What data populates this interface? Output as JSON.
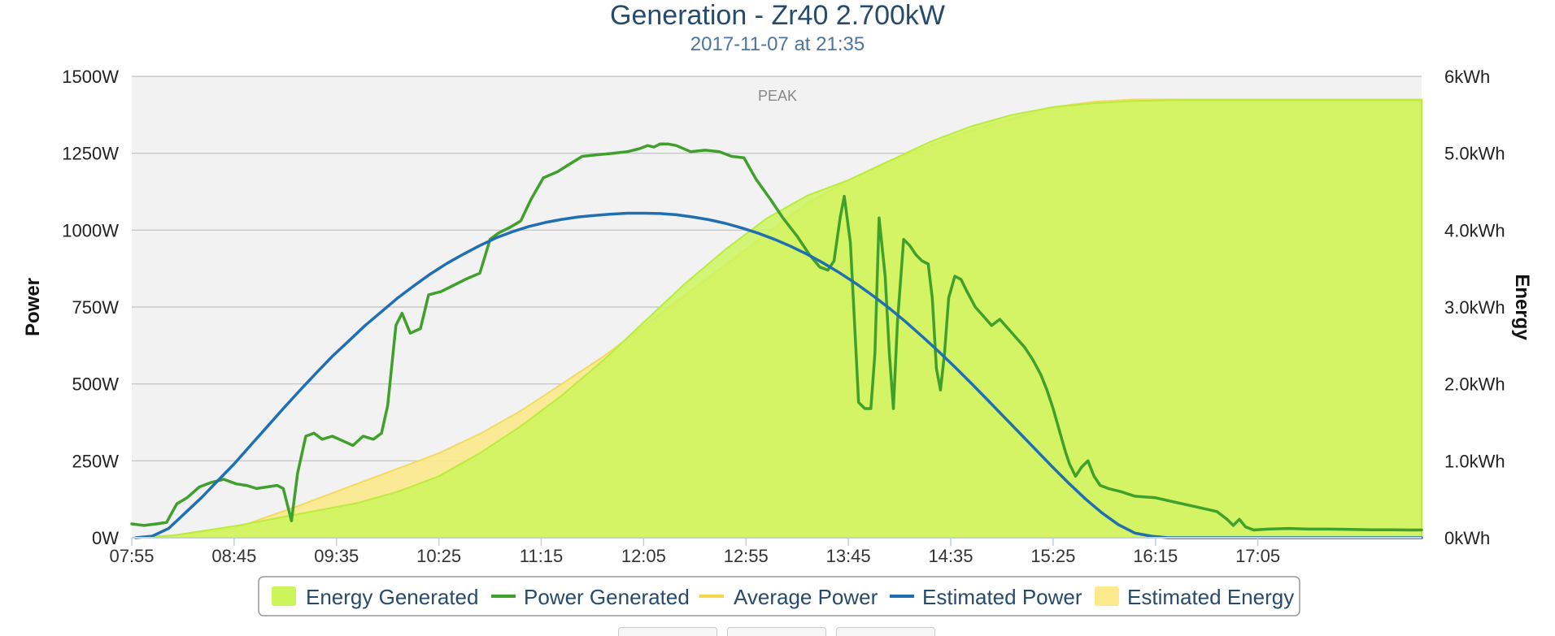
{
  "chart_data": {
    "type": "area",
    "title": "Generation - Zr40 2.700kW",
    "subtitle": "2017-11-07 at 21:35",
    "peak_label": "PEAK",
    "y_left": {
      "label": "Power",
      "min": 0,
      "max": 1500,
      "ticks": [
        {
          "v": 0,
          "label": "0W"
        },
        {
          "v": 250,
          "label": "250W"
        },
        {
          "v": 500,
          "label": "500W"
        },
        {
          "v": 750,
          "label": "750W"
        },
        {
          "v": 1000,
          "label": "1000W"
        },
        {
          "v": 1250,
          "label": "1250W"
        },
        {
          "v": 1500,
          "label": "1500W"
        }
      ]
    },
    "y_right": {
      "label": "Energy",
      "min": 0,
      "max": 6,
      "ticks": [
        {
          "v": 0,
          "label": "0kWh"
        },
        {
          "v": 1,
          "label": "1.0kWh"
        },
        {
          "v": 2,
          "label": "2.0kWh"
        },
        {
          "v": 3,
          "label": "3.0kWh"
        },
        {
          "v": 4,
          "label": "4.0kWh"
        },
        {
          "v": 5,
          "label": "5.0kWh"
        },
        {
          "v": 6,
          "label": "6kWh"
        }
      ]
    },
    "x": {
      "min_minutes": 475,
      "max_minutes": 1105,
      "ticks": [
        {
          "v": 475,
          "label": "07:55"
        },
        {
          "v": 525,
          "label": "08:45"
        },
        {
          "v": 575,
          "label": "09:35"
        },
        {
          "v": 625,
          "label": "10:25"
        },
        {
          "v": 675,
          "label": "11:15"
        },
        {
          "v": 725,
          "label": "12:05"
        },
        {
          "v": 775,
          "label": "12:55"
        },
        {
          "v": 825,
          "label": "13:45"
        },
        {
          "v": 875,
          "label": "14:35"
        },
        {
          "v": 925,
          "label": "15:25"
        },
        {
          "v": 975,
          "label": "16:15"
        },
        {
          "v": 1025,
          "label": "17:05"
        }
      ]
    },
    "series": [
      {
        "name": "Energy Generated",
        "axis": "right",
        "kind": "area",
        "color": "#ccf55a",
        "points": [
          [
            475,
            0
          ],
          [
            495,
            0.03
          ],
          [
            525,
            0.15
          ],
          [
            555,
            0.3
          ],
          [
            585,
            0.45
          ],
          [
            605,
            0.6
          ],
          [
            625,
            0.8
          ],
          [
            645,
            1.1
          ],
          [
            665,
            1.45
          ],
          [
            685,
            1.85
          ],
          [
            705,
            2.3
          ],
          [
            725,
            2.8
          ],
          [
            745,
            3.3
          ],
          [
            765,
            3.75
          ],
          [
            785,
            4.15
          ],
          [
            805,
            4.45
          ],
          [
            825,
            4.65
          ],
          [
            845,
            4.9
          ],
          [
            865,
            5.15
          ],
          [
            885,
            5.35
          ],
          [
            905,
            5.5
          ],
          [
            925,
            5.6
          ],
          [
            945,
            5.65
          ],
          [
            965,
            5.68
          ],
          [
            985,
            5.69
          ],
          [
            1005,
            5.69
          ],
          [
            1105,
            5.69
          ]
        ]
      },
      {
        "name": "Power Generated",
        "axis": "left",
        "kind": "line",
        "color": "#3fa02c",
        "points": [
          [
            475,
            45
          ],
          [
            481,
            40
          ],
          [
            487,
            45
          ],
          [
            492,
            50
          ],
          [
            497,
            110
          ],
          [
            502,
            130
          ],
          [
            508,
            165
          ],
          [
            514,
            180
          ],
          [
            520,
            190
          ],
          [
            526,
            175
          ],
          [
            531,
            170
          ],
          [
            536,
            160
          ],
          [
            541,
            165
          ],
          [
            546,
            170
          ],
          [
            549,
            160
          ],
          [
            553,
            55
          ],
          [
            556,
            210
          ],
          [
            560,
            330
          ],
          [
            564,
            340
          ],
          [
            568,
            320
          ],
          [
            573,
            330
          ],
          [
            578,
            315
          ],
          [
            583,
            300
          ],
          [
            588,
            330
          ],
          [
            593,
            320
          ],
          [
            597,
            340
          ],
          [
            600,
            430
          ],
          [
            604,
            690
          ],
          [
            607,
            730
          ],
          [
            611,
            665
          ],
          [
            616,
            680
          ],
          [
            620,
            790
          ],
          [
            626,
            800
          ],
          [
            632,
            820
          ],
          [
            638,
            840
          ],
          [
            645,
            860
          ],
          [
            650,
            970
          ],
          [
            654,
            990
          ],
          [
            660,
            1010
          ],
          [
            665,
            1030
          ],
          [
            670,
            1100
          ],
          [
            676,
            1170
          ],
          [
            683,
            1190
          ],
          [
            689,
            1215
          ],
          [
            695,
            1240
          ],
          [
            702,
            1245
          ],
          [
            710,
            1250
          ],
          [
            717,
            1255
          ],
          [
            723,
            1265
          ],
          [
            727,
            1275
          ],
          [
            730,
            1270
          ],
          [
            733,
            1280
          ],
          [
            737,
            1280
          ],
          [
            741,
            1275
          ],
          [
            748,
            1255
          ],
          [
            755,
            1260
          ],
          [
            762,
            1255
          ],
          [
            768,
            1240
          ],
          [
            774,
            1235
          ],
          [
            780,
            1165
          ],
          [
            787,
            1100
          ],
          [
            793,
            1040
          ],
          [
            800,
            980
          ],
          [
            806,
            920
          ],
          [
            811,
            880
          ],
          [
            815,
            870
          ],
          [
            818,
            900
          ],
          [
            821,
            1040
          ],
          [
            823,
            1110
          ],
          [
            826,
            960
          ],
          [
            828,
            700
          ],
          [
            830,
            440
          ],
          [
            833,
            420
          ],
          [
            836,
            420
          ],
          [
            838,
            600
          ],
          [
            840,
            1040
          ],
          [
            843,
            850
          ],
          [
            845,
            600
          ],
          [
            847,
            420
          ],
          [
            849,
            700
          ],
          [
            852,
            970
          ],
          [
            855,
            950
          ],
          [
            858,
            920
          ],
          [
            861,
            900
          ],
          [
            864,
            890
          ],
          [
            866,
            780
          ],
          [
            868,
            550
          ],
          [
            870,
            480
          ],
          [
            872,
            600
          ],
          [
            874,
            780
          ],
          [
            877,
            850
          ],
          [
            880,
            840
          ],
          [
            883,
            800
          ],
          [
            887,
            750
          ],
          [
            891,
            720
          ],
          [
            895,
            690
          ],
          [
            899,
            710
          ],
          [
            903,
            680
          ],
          [
            907,
            650
          ],
          [
            911,
            620
          ],
          [
            915,
            580
          ],
          [
            919,
            530
          ],
          [
            922,
            480
          ],
          [
            925,
            420
          ],
          [
            928,
            350
          ],
          [
            931,
            280
          ],
          [
            933,
            240
          ],
          [
            936,
            200
          ],
          [
            939,
            230
          ],
          [
            942,
            250
          ],
          [
            945,
            200
          ],
          [
            948,
            170
          ],
          [
            952,
            160
          ],
          [
            958,
            150
          ],
          [
            965,
            135
          ],
          [
            975,
            130
          ],
          [
            985,
            115
          ],
          [
            995,
            100
          ],
          [
            1005,
            85
          ],
          [
            1010,
            60
          ],
          [
            1013,
            40
          ],
          [
            1016,
            60
          ],
          [
            1019,
            35
          ],
          [
            1023,
            25
          ],
          [
            1030,
            28
          ],
          [
            1040,
            30
          ],
          [
            1050,
            28
          ],
          [
            1060,
            28
          ],
          [
            1070,
            27
          ],
          [
            1080,
            26
          ],
          [
            1090,
            26
          ],
          [
            1100,
            25
          ],
          [
            1105,
            25
          ]
        ]
      },
      {
        "name": "Average Power",
        "axis": "left",
        "kind": "line",
        "color": "#f5d84a",
        "points": []
      },
      {
        "name": "Estimated Power",
        "axis": "left",
        "kind": "line",
        "color": "#1f6fb2",
        "points": [
          [
            477,
            0
          ],
          [
            485,
            5
          ],
          [
            493,
            30
          ],
          [
            501,
            80
          ],
          [
            509,
            130
          ],
          [
            517,
            185
          ],
          [
            525,
            240
          ],
          [
            533,
            300
          ],
          [
            541,
            360
          ],
          [
            549,
            420
          ],
          [
            557,
            478
          ],
          [
            565,
            535
          ],
          [
            573,
            590
          ],
          [
            581,
            640
          ],
          [
            589,
            690
          ],
          [
            597,
            735
          ],
          [
            605,
            780
          ],
          [
            613,
            820
          ],
          [
            621,
            858
          ],
          [
            629,
            892
          ],
          [
            637,
            922
          ],
          [
            645,
            950
          ],
          [
            653,
            975
          ],
          [
            661,
            995
          ],
          [
            669,
            1012
          ],
          [
            677,
            1025
          ],
          [
            685,
            1035
          ],
          [
            693,
            1043
          ],
          [
            701,
            1048
          ],
          [
            709,
            1052
          ],
          [
            717,
            1055
          ],
          [
            725,
            1055
          ],
          [
            733,
            1054
          ],
          [
            741,
            1050
          ],
          [
            749,
            1043
          ],
          [
            757,
            1034
          ],
          [
            765,
            1022
          ],
          [
            773,
            1007
          ],
          [
            781,
            990
          ],
          [
            789,
            970
          ],
          [
            797,
            947
          ],
          [
            805,
            921
          ],
          [
            813,
            892
          ],
          [
            821,
            860
          ],
          [
            829,
            825
          ],
          [
            837,
            787
          ],
          [
            845,
            746
          ],
          [
            853,
            702
          ],
          [
            861,
            655
          ],
          [
            869,
            606
          ],
          [
            877,
            555
          ],
          [
            885,
            502
          ],
          [
            893,
            448
          ],
          [
            901,
            393
          ],
          [
            909,
            338
          ],
          [
            917,
            283
          ],
          [
            925,
            228
          ],
          [
            933,
            175
          ],
          [
            941,
            125
          ],
          [
            949,
            80
          ],
          [
            957,
            42
          ],
          [
            965,
            15
          ],
          [
            973,
            5
          ],
          [
            981,
            0
          ],
          [
            1105,
            0
          ]
        ]
      },
      {
        "name": "Estimated Energy",
        "axis": "right",
        "kind": "area",
        "color": "#fbe98b",
        "points": [
          [
            475,
            0
          ],
          [
            495,
            0.03
          ],
          [
            525,
            0.12
          ],
          [
            555,
            0.4
          ],
          [
            585,
            0.7
          ],
          [
            605,
            0.9
          ],
          [
            625,
            1.1
          ],
          [
            645,
            1.35
          ],
          [
            665,
            1.65
          ],
          [
            685,
            2.0
          ],
          [
            705,
            2.35
          ],
          [
            725,
            2.75
          ],
          [
            745,
            3.15
          ],
          [
            765,
            3.55
          ],
          [
            785,
            3.95
          ],
          [
            805,
            4.35
          ],
          [
            825,
            4.65
          ],
          [
            845,
            4.9
          ],
          [
            865,
            5.1
          ],
          [
            885,
            5.3
          ],
          [
            905,
            5.45
          ],
          [
            925,
            5.6
          ],
          [
            945,
            5.67
          ],
          [
            965,
            5.7
          ],
          [
            985,
            5.7
          ],
          [
            1005,
            5.7
          ],
          [
            1105,
            5.7
          ]
        ]
      }
    ],
    "legend": {
      "placement": "bottom-center",
      "items": [
        "Energy Generated",
        "Power Generated",
        "Average Power",
        "Estimated Power",
        "Estimated Energy"
      ]
    }
  }
}
